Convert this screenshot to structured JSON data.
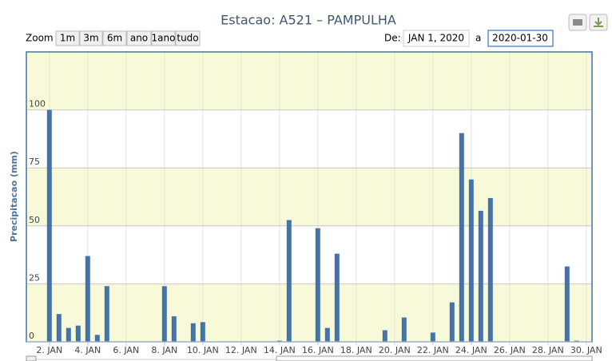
{
  "chart_data": {
    "type": "bar",
    "title": "Estacao: A521 – PAMPULHA",
    "zoom_label": "Zoom",
    "zoom_buttons": [
      "1m",
      "3m",
      "6m",
      "ano",
      "1ano",
      "tudo"
    ],
    "from_label": "De:",
    "from_value": "JAN 1, 2020",
    "to_label": "a",
    "to_value": "2020-01-30",
    "y_label": "Precipitacao (mm)",
    "x": [
      2,
      2.5,
      3,
      3.5,
      4,
      4.5,
      5,
      8,
      8.5,
      9.5,
      10,
      14,
      14.5,
      16,
      16.5,
      17,
      19.5,
      20.5,
      22,
      23,
      23.5,
      24,
      24.5,
      25,
      29,
      29.5
    ],
    "values": [
      100,
      12,
      6,
      7,
      37,
      3,
      24,
      24,
      11,
      8,
      8.5,
      0.5,
      52.5,
      49,
      6,
      38,
      5,
      10.5,
      4,
      17,
      90,
      70,
      56.5,
      62,
      32.5,
      0.5
    ],
    "color": "#4572a7",
    "xlim": [
      0.8,
      30.3
    ],
    "xticks": [
      {
        "value": 2,
        "label": "2. JAN"
      },
      {
        "value": 4,
        "label": "4. JAN"
      },
      {
        "value": 6,
        "label": "6. JAN"
      },
      {
        "value": 8,
        "label": "8. JAN"
      },
      {
        "value": 10,
        "label": "10. JAN"
      },
      {
        "value": 12,
        "label": "12. JAN"
      },
      {
        "value": 14,
        "label": "14. JAN"
      },
      {
        "value": 16,
        "label": "16. JAN"
      },
      {
        "value": 18,
        "label": "18. JAN"
      },
      {
        "value": 20,
        "label": "20. JAN"
      },
      {
        "value": 22,
        "label": "22. JAN"
      },
      {
        "value": 24,
        "label": "24. JAN"
      },
      {
        "value": 26,
        "label": "26. JAN"
      },
      {
        "value": 28,
        "label": "28. JAN"
      },
      {
        "value": 30,
        "label": "30. JAN"
      }
    ],
    "ylim": [
      0,
      125
    ],
    "yticks": [
      0,
      25,
      50,
      75,
      100
    ],
    "grid": true,
    "alternate_band_color": "#f8f9d9"
  }
}
